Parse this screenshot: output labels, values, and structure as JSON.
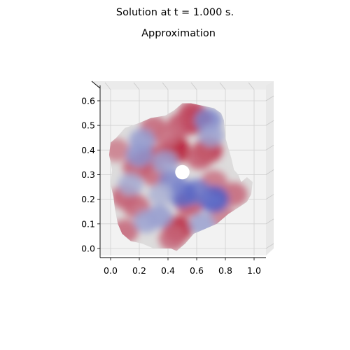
{
  "figure": {
    "suptitle": "Solution at t = 1.000 s.",
    "title": "Approximation"
  },
  "chart_data": {
    "type": "heatmap",
    "projection": "3d surface viewed from top",
    "colormap": "coolwarm",
    "grid": true,
    "xlim": [
      -0.05,
      1.07
    ],
    "ylim": [
      -0.04,
      0.66
    ],
    "xticks": [
      "0.0",
      "0.2",
      "0.4",
      "0.6",
      "0.8",
      "1.0"
    ],
    "yticks": [
      "0.0",
      "0.1",
      "0.2",
      "0.3",
      "0.4",
      "0.5",
      "0.6"
    ],
    "domain_outline": [
      [
        0.22,
        0.02
      ],
      [
        0.3,
        0.0
      ],
      [
        0.42,
        0.0
      ],
      [
        0.46,
        -0.01
      ],
      [
        0.52,
        0.02
      ],
      [
        0.58,
        0.06
      ],
      [
        0.66,
        0.08
      ],
      [
        0.74,
        0.1
      ],
      [
        0.82,
        0.14
      ],
      [
        0.9,
        0.17
      ],
      [
        0.95,
        0.19
      ],
      [
        0.98,
        0.22
      ],
      [
        0.99,
        0.27
      ],
      [
        0.95,
        0.29
      ],
      [
        0.91,
        0.27
      ],
      [
        0.89,
        0.3
      ],
      [
        0.86,
        0.32
      ],
      [
        0.84,
        0.37
      ],
      [
        0.8,
        0.45
      ],
      [
        0.79,
        0.52
      ],
      [
        0.77,
        0.55
      ],
      [
        0.72,
        0.57
      ],
      [
        0.64,
        0.58
      ],
      [
        0.56,
        0.59
      ],
      [
        0.5,
        0.59
      ],
      [
        0.44,
        0.56
      ],
      [
        0.38,
        0.54
      ],
      [
        0.28,
        0.53
      ],
      [
        0.2,
        0.51
      ],
      [
        0.1,
        0.49
      ],
      [
        0.04,
        0.45
      ],
      [
        0.0,
        0.43
      ],
      [
        -0.01,
        0.38
      ],
      [
        0.01,
        0.32
      ],
      [
        0.0,
        0.26
      ],
      [
        0.02,
        0.21
      ],
      [
        0.03,
        0.16
      ],
      [
        0.05,
        0.1
      ],
      [
        0.08,
        0.06
      ],
      [
        0.14,
        0.03
      ]
    ],
    "hole": {
      "center": [
        0.5,
        0.31
      ],
      "radius": 0.05
    },
    "hotspots": [
      {
        "x": 0.6,
        "y": 0.52,
        "value": 0.95
      },
      {
        "x": 0.57,
        "y": 0.55,
        "value": 0.7
      },
      {
        "x": 0.45,
        "y": 0.4,
        "value": 0.95
      },
      {
        "x": 0.49,
        "y": 0.5,
        "value": 0.65
      },
      {
        "x": 0.68,
        "y": 0.4,
        "value": 0.8
      },
      {
        "x": 0.62,
        "y": 0.37,
        "value": 0.6
      },
      {
        "x": 0.55,
        "y": 0.18,
        "value": 0.65
      },
      {
        "x": 0.47,
        "y": 0.08,
        "value": 0.85
      },
      {
        "x": 0.43,
        "y": 0.04,
        "value": 0.55
      },
      {
        "x": 0.28,
        "y": 0.37,
        "value": 0.7
      },
      {
        "x": 0.31,
        "y": 0.3,
        "value": 0.55
      },
      {
        "x": 0.18,
        "y": 0.33,
        "value": 0.6
      },
      {
        "x": 0.1,
        "y": 0.21,
        "value": 0.6
      },
      {
        "x": 0.18,
        "y": 0.17,
        "value": 0.55
      },
      {
        "x": 0.1,
        "y": 0.07,
        "value": 0.55
      },
      {
        "x": 0.86,
        "y": 0.22,
        "value": 0.55
      },
      {
        "x": 0.78,
        "y": 0.13,
        "value": 0.45
      },
      {
        "x": 0.3,
        "y": 0.49,
        "value": 0.55
      },
      {
        "x": 0.38,
        "y": 0.46,
        "value": 0.5
      },
      {
        "x": 0.72,
        "y": 0.27,
        "value": 0.5
      },
      {
        "x": 0.04,
        "y": 0.4,
        "value": 0.45
      },
      {
        "x": 0.72,
        "y": 0.2,
        "value": -0.9
      },
      {
        "x": 0.6,
        "y": 0.23,
        "value": -0.7
      },
      {
        "x": 0.5,
        "y": 0.22,
        "value": -0.8
      },
      {
        "x": 0.43,
        "y": 0.27,
        "value": -0.6
      },
      {
        "x": 0.2,
        "y": 0.38,
        "value": -0.5
      },
      {
        "x": 0.34,
        "y": 0.13,
        "value": -0.45
      },
      {
        "x": 0.25,
        "y": 0.11,
        "value": -0.4
      },
      {
        "x": 0.64,
        "y": 0.1,
        "value": -0.4
      },
      {
        "x": 0.22,
        "y": 0.44,
        "value": -0.45
      },
      {
        "x": 0.68,
        "y": 0.52,
        "value": -0.6
      },
      {
        "x": 0.7,
        "y": 0.46,
        "value": -0.4
      },
      {
        "x": 0.38,
        "y": 0.35,
        "value": -0.4
      },
      {
        "x": 0.14,
        "y": 0.26,
        "value": -0.35
      },
      {
        "x": 0.35,
        "y": 0.22,
        "value": -0.3
      }
    ],
    "value_range": [
      -1,
      1
    ]
  }
}
